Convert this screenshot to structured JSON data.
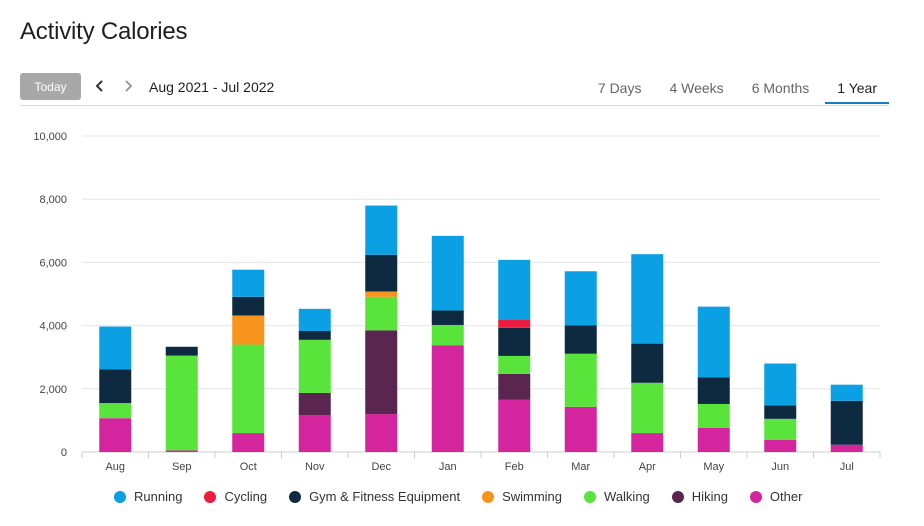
{
  "title": "Activity Calories",
  "toolbar": {
    "today_label": "Today",
    "date_range": "Aug 2021 - Jul 2022",
    "tabs": [
      {
        "label": "7 Days",
        "active": false
      },
      {
        "label": "4 Weeks",
        "active": false
      },
      {
        "label": "6 Months",
        "active": false
      },
      {
        "label": "1 Year",
        "active": true
      }
    ]
  },
  "chart_data": {
    "type": "bar",
    "stacked": true,
    "title": "",
    "xlabel": "",
    "ylabel": "",
    "ylim": [
      0,
      10000
    ],
    "yticks": [
      0,
      2000,
      4000,
      6000,
      8000,
      10000
    ],
    "ytick_labels": [
      "0",
      "2,000",
      "4,000",
      "6,000",
      "8,000",
      "10,000"
    ],
    "grid": true,
    "legend_position": "bottom",
    "categories": [
      "Aug",
      "Sep",
      "Oct",
      "Nov",
      "Dec",
      "Jan",
      "Feb",
      "Mar",
      "Apr",
      "May",
      "Jun",
      "Jul"
    ],
    "series": [
      {
        "name": "Other",
        "color": "#d4259e",
        "values": [
          1070,
          50,
          600,
          1170,
          1200,
          3380,
          1650,
          1430,
          600,
          760,
          380,
          230
        ]
      },
      {
        "name": "Hiking",
        "color": "#5a2650",
        "values": [
          0,
          0,
          0,
          700,
          2650,
          0,
          820,
          0,
          0,
          0,
          0,
          0
        ]
      },
      {
        "name": "Walking",
        "color": "#58e43a",
        "values": [
          480,
          3000,
          2800,
          1680,
          1060,
          640,
          570,
          1680,
          1590,
          760,
          670,
          0
        ]
      },
      {
        "name": "Swimming",
        "color": "#f7941d",
        "values": [
          0,
          0,
          920,
          0,
          170,
          0,
          0,
          0,
          0,
          0,
          0,
          0
        ]
      },
      {
        "name": "Gym & Fitness Equipment",
        "color": "#0d2a40",
        "values": [
          1060,
          280,
          590,
          280,
          1160,
          460,
          890,
          900,
          1240,
          840,
          420,
          1390
        ]
      },
      {
        "name": "Cycling",
        "color": "#ee1c3e",
        "values": [
          0,
          0,
          0,
          0,
          0,
          0,
          270,
          0,
          0,
          0,
          0,
          0
        ]
      },
      {
        "name": "Running",
        "color": "#0aa0e3",
        "values": [
          1360,
          0,
          860,
          700,
          1560,
          2360,
          1880,
          1710,
          2830,
          2240,
          1330,
          510
        ]
      }
    ],
    "legend_order": [
      "Running",
      "Cycling",
      "Gym & Fitness Equipment",
      "Swimming",
      "Walking",
      "Hiking",
      "Other"
    ]
  },
  "colors": {
    "accent": "#1b7bbd",
    "today_button": "#a8a8a8",
    "grid": "#e6e6e6"
  },
  "icons": {
    "prev": "chevron-left-icon",
    "next": "chevron-right-icon"
  }
}
